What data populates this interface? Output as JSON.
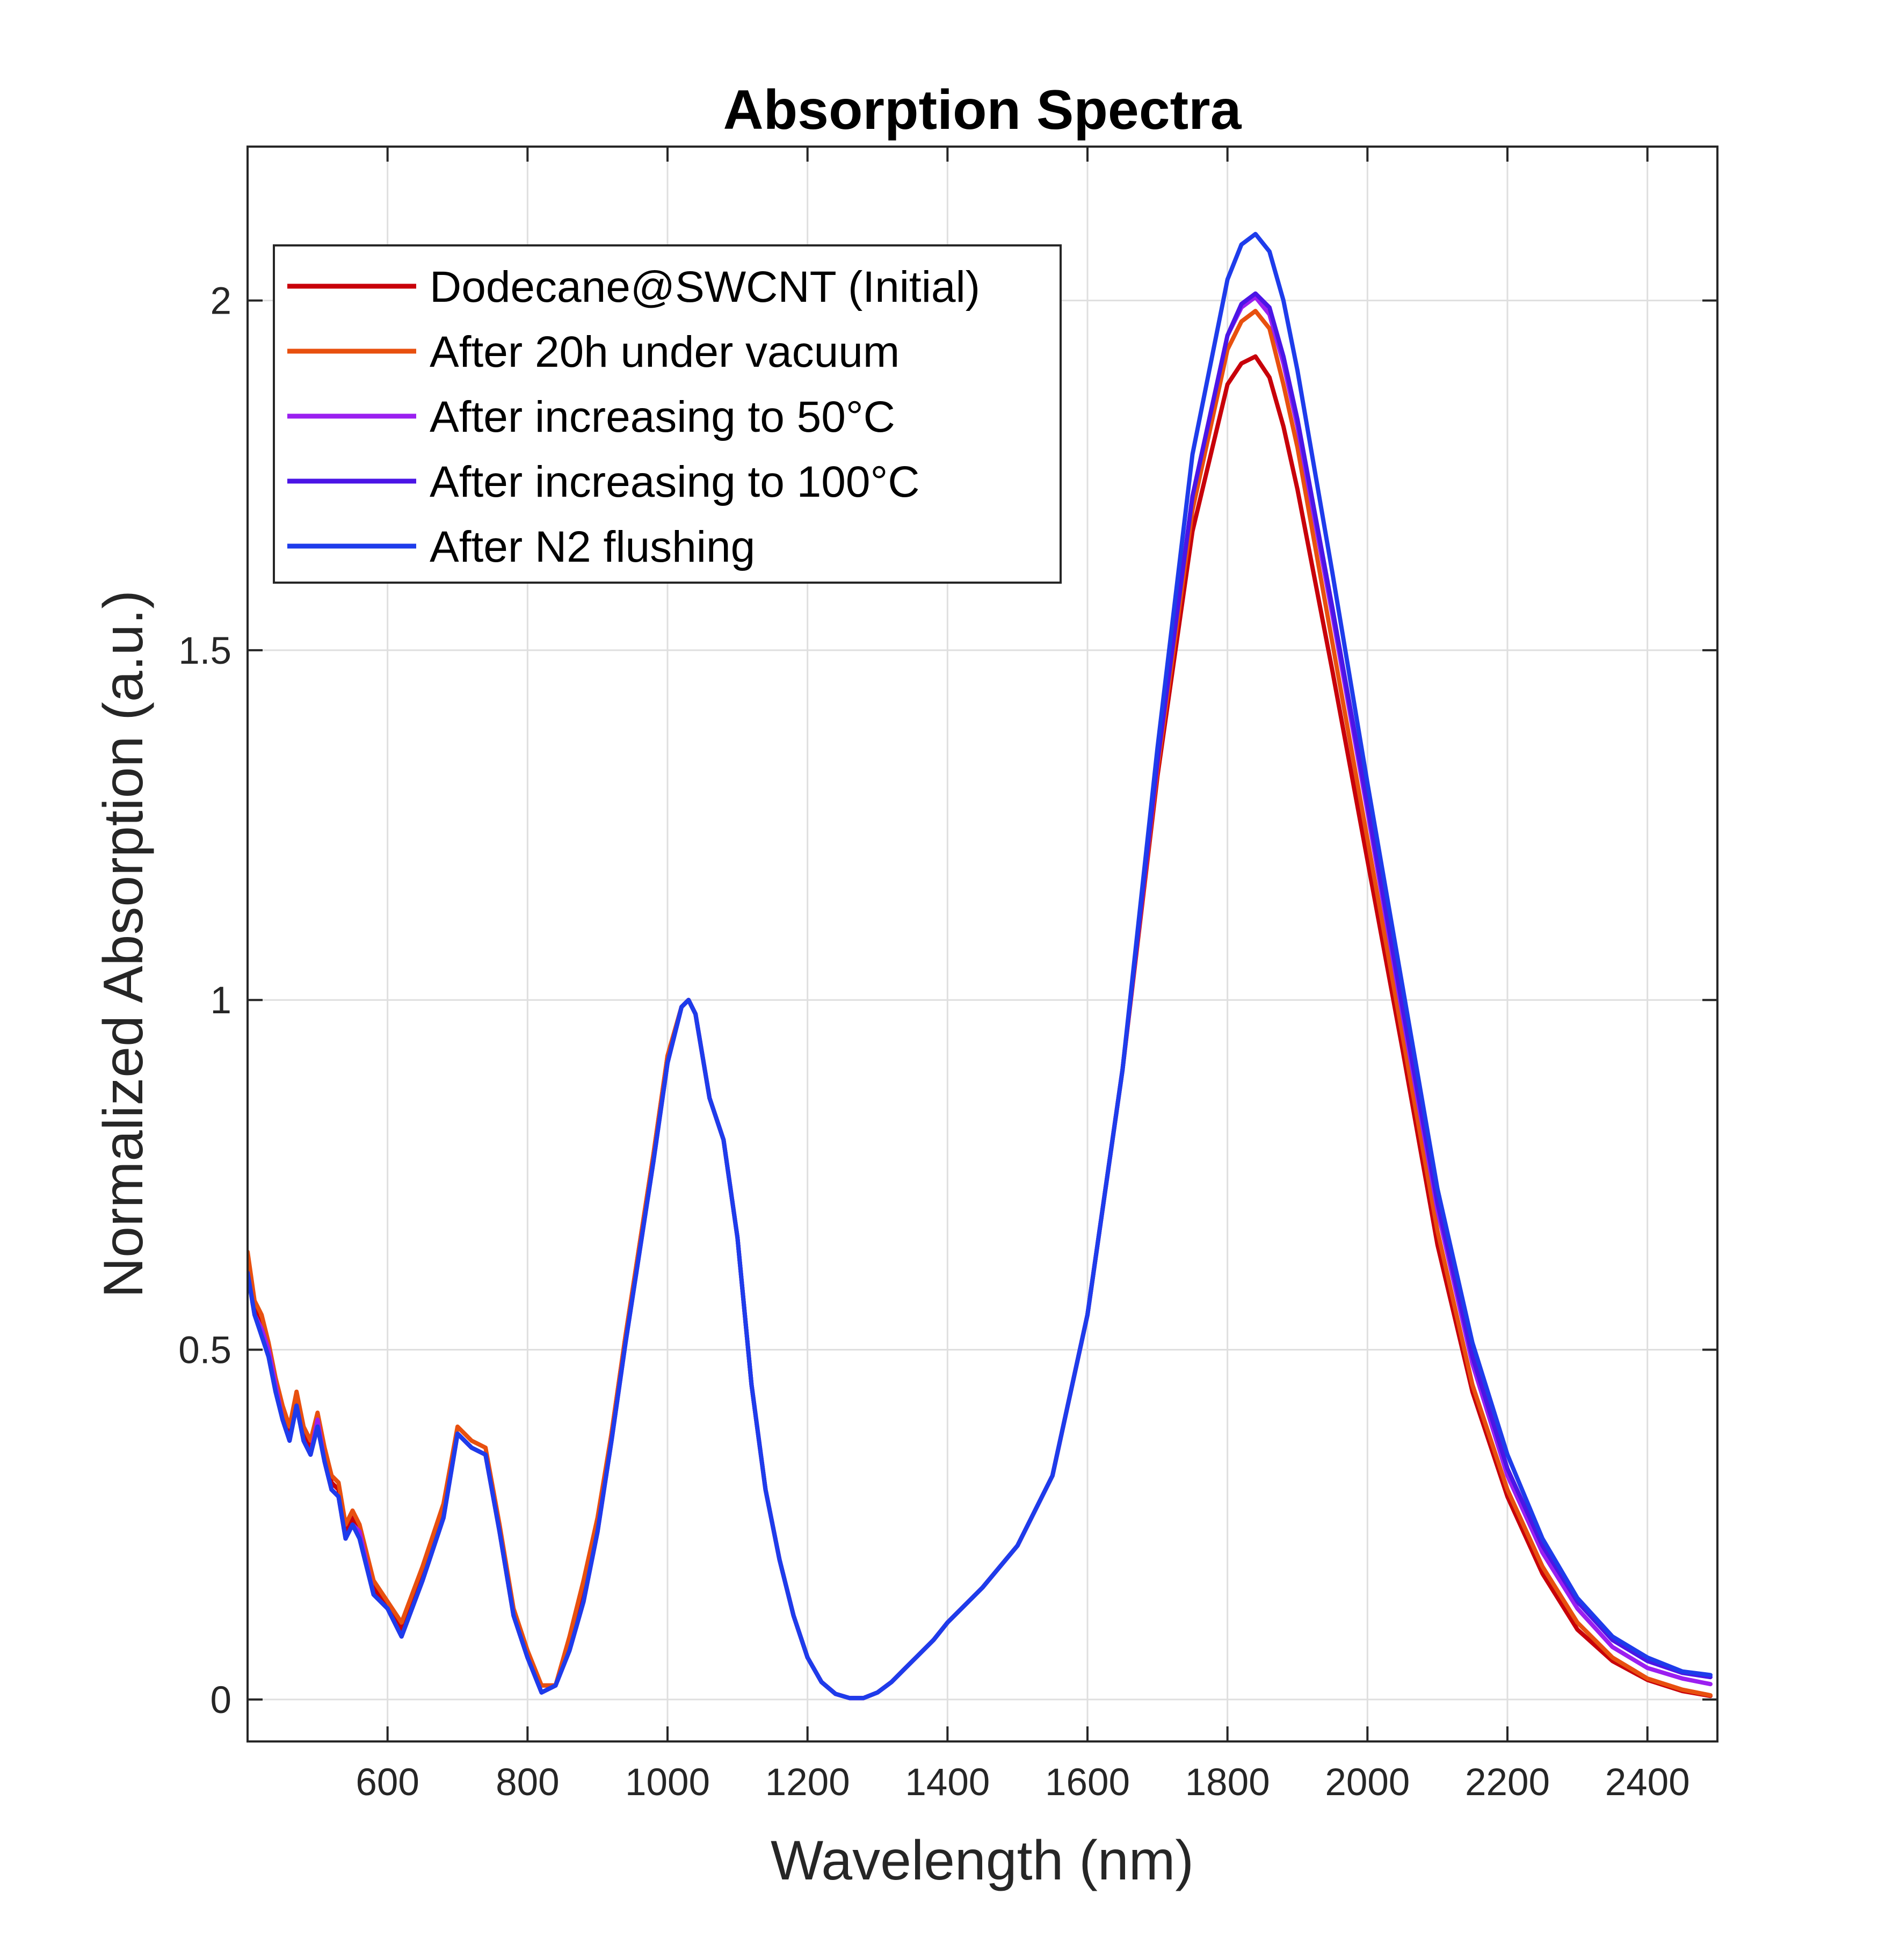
{
  "chart_data": {
    "type": "line",
    "title": "Absorption Spectra",
    "xlabel": "Wavelength (nm)",
    "ylabel": "Normalized Absorption (a.u.)",
    "xlim": [
      400,
      2500
    ],
    "ylim": [
      -0.06,
      2.22
    ],
    "xticks": [
      600,
      800,
      1000,
      1200,
      1400,
      1600,
      1800,
      2000,
      2200,
      2400
    ],
    "xtick_labels": [
      "600",
      "800",
      "1000",
      "1200",
      "1400",
      "1600",
      "1800",
      "2000",
      "2200",
      "2400"
    ],
    "yticks": [
      0,
      0.5,
      1,
      1.5,
      2
    ],
    "ytick_labels": [
      "0",
      "0.5",
      "1",
      "1.5",
      "2"
    ],
    "grid": true,
    "legend_position": "top-left",
    "x": [
      400,
      410,
      420,
      430,
      440,
      450,
      460,
      470,
      480,
      490,
      500,
      510,
      520,
      530,
      540,
      550,
      560,
      580,
      600,
      620,
      650,
      680,
      700,
      720,
      740,
      760,
      780,
      800,
      820,
      840,
      860,
      880,
      900,
      920,
      940,
      960,
      980,
      1000,
      1020,
      1030,
      1040,
      1060,
      1080,
      1100,
      1120,
      1140,
      1160,
      1180,
      1200,
      1220,
      1240,
      1260,
      1280,
      1300,
      1320,
      1340,
      1360,
      1380,
      1400,
      1450,
      1500,
      1550,
      1600,
      1650,
      1700,
      1750,
      1800,
      1820,
      1840,
      1860,
      1880,
      1900,
      1950,
      2000,
      2050,
      2100,
      2150,
      2200,
      2250,
      2300,
      2350,
      2400,
      2450,
      2490
    ],
    "series": [
      {
        "name": "Dodecane@SWCNT (Initial)",
        "color": "#c8000a",
        "values": [
          0.62,
          0.56,
          0.53,
          0.5,
          0.45,
          0.41,
          0.38,
          0.43,
          0.38,
          0.36,
          0.4,
          0.35,
          0.31,
          0.3,
          0.24,
          0.26,
          0.24,
          0.16,
          0.13,
          0.1,
          0.18,
          0.27,
          0.38,
          0.36,
          0.35,
          0.24,
          0.12,
          0.06,
          0.02,
          0.02,
          0.08,
          0.15,
          0.25,
          0.38,
          0.52,
          0.65,
          0.78,
          0.92,
          0.99,
          1.0,
          0.98,
          0.86,
          0.8,
          0.66,
          0.45,
          0.3,
          0.2,
          0.12,
          0.06,
          0.025,
          0.008,
          0.002,
          0.002,
          0.01,
          0.025,
          0.045,
          0.065,
          0.085,
          0.11,
          0.16,
          0.22,
          0.32,
          0.55,
          0.9,
          1.32,
          1.67,
          1.88,
          1.91,
          1.92,
          1.89,
          1.82,
          1.73,
          1.47,
          1.2,
          0.93,
          0.65,
          0.44,
          0.29,
          0.18,
          0.1,
          0.055,
          0.028,
          0.012,
          0.005
        ]
      },
      {
        "name": "After 20h under vacuum",
        "color": "#e8500f",
        "values": [
          0.64,
          0.57,
          0.55,
          0.51,
          0.46,
          0.42,
          0.39,
          0.44,
          0.39,
          0.37,
          0.41,
          0.36,
          0.32,
          0.31,
          0.25,
          0.27,
          0.25,
          0.17,
          0.14,
          0.11,
          0.19,
          0.28,
          0.39,
          0.37,
          0.36,
          0.25,
          0.13,
          0.07,
          0.02,
          0.02,
          0.09,
          0.17,
          0.26,
          0.38,
          0.52,
          0.65,
          0.78,
          0.92,
          0.99,
          1.0,
          0.98,
          0.86,
          0.8,
          0.66,
          0.45,
          0.3,
          0.2,
          0.12,
          0.06,
          0.025,
          0.008,
          0.002,
          0.002,
          0.01,
          0.025,
          0.045,
          0.065,
          0.085,
          0.11,
          0.16,
          0.22,
          0.32,
          0.55,
          0.9,
          1.33,
          1.7,
          1.93,
          1.97,
          1.985,
          1.96,
          1.88,
          1.79,
          1.51,
          1.23,
          0.95,
          0.67,
          0.45,
          0.3,
          0.19,
          0.11,
          0.06,
          0.03,
          0.014,
          0.006
        ]
      },
      {
        "name": "After increasing to 50°C",
        "color": "#9b1ff0",
        "values": [
          0.61,
          0.55,
          0.53,
          0.5,
          0.45,
          0.4,
          0.37,
          0.42,
          0.37,
          0.35,
          0.4,
          0.34,
          0.3,
          0.29,
          0.23,
          0.25,
          0.24,
          0.15,
          0.13,
          0.09,
          0.17,
          0.26,
          0.38,
          0.36,
          0.35,
          0.24,
          0.12,
          0.06,
          0.01,
          0.02,
          0.07,
          0.14,
          0.24,
          0.37,
          0.51,
          0.64,
          0.77,
          0.91,
          0.99,
          1.0,
          0.98,
          0.86,
          0.8,
          0.66,
          0.45,
          0.3,
          0.2,
          0.12,
          0.06,
          0.025,
          0.008,
          0.002,
          0.002,
          0.01,
          0.025,
          0.045,
          0.065,
          0.085,
          0.11,
          0.16,
          0.22,
          0.32,
          0.55,
          0.9,
          1.34,
          1.72,
          1.95,
          1.99,
          2.005,
          1.98,
          1.91,
          1.82,
          1.55,
          1.27,
          0.98,
          0.7,
          0.48,
          0.32,
          0.21,
          0.13,
          0.075,
          0.045,
          0.03,
          0.022
        ]
      },
      {
        "name": "After increasing to 100°C",
        "color": "#4b15e6",
        "values": [
          0.61,
          0.55,
          0.52,
          0.49,
          0.44,
          0.4,
          0.37,
          0.42,
          0.37,
          0.35,
          0.39,
          0.34,
          0.3,
          0.29,
          0.23,
          0.25,
          0.23,
          0.15,
          0.13,
          0.09,
          0.17,
          0.26,
          0.38,
          0.36,
          0.35,
          0.24,
          0.12,
          0.06,
          0.01,
          0.02,
          0.07,
          0.14,
          0.24,
          0.37,
          0.51,
          0.64,
          0.77,
          0.91,
          0.99,
          1.0,
          0.98,
          0.86,
          0.8,
          0.66,
          0.45,
          0.3,
          0.2,
          0.12,
          0.06,
          0.025,
          0.008,
          0.002,
          0.002,
          0.01,
          0.025,
          0.045,
          0.065,
          0.085,
          0.11,
          0.16,
          0.22,
          0.32,
          0.55,
          0.9,
          1.34,
          1.72,
          1.95,
          1.995,
          2.01,
          1.99,
          1.92,
          1.83,
          1.56,
          1.28,
          0.99,
          0.71,
          0.49,
          0.33,
          0.22,
          0.14,
          0.085,
          0.055,
          0.038,
          0.032
        ]
      },
      {
        "name": "After N2 flushing",
        "color": "#1e3ceb",
        "values": [
          0.61,
          0.55,
          0.52,
          0.49,
          0.44,
          0.4,
          0.37,
          0.42,
          0.37,
          0.35,
          0.39,
          0.34,
          0.3,
          0.29,
          0.23,
          0.25,
          0.23,
          0.15,
          0.13,
          0.09,
          0.17,
          0.26,
          0.38,
          0.36,
          0.35,
          0.24,
          0.12,
          0.06,
          0.01,
          0.02,
          0.07,
          0.14,
          0.24,
          0.37,
          0.51,
          0.64,
          0.77,
          0.91,
          0.99,
          1.0,
          0.98,
          0.86,
          0.8,
          0.66,
          0.45,
          0.3,
          0.2,
          0.12,
          0.06,
          0.025,
          0.008,
          0.002,
          0.002,
          0.01,
          0.025,
          0.045,
          0.065,
          0.085,
          0.11,
          0.16,
          0.22,
          0.32,
          0.55,
          0.9,
          1.36,
          1.78,
          2.03,
          2.08,
          2.095,
          2.07,
          2.0,
          1.9,
          1.61,
          1.31,
          1.02,
          0.73,
          0.51,
          0.35,
          0.23,
          0.145,
          0.09,
          0.06,
          0.04,
          0.035
        ]
      }
    ]
  }
}
